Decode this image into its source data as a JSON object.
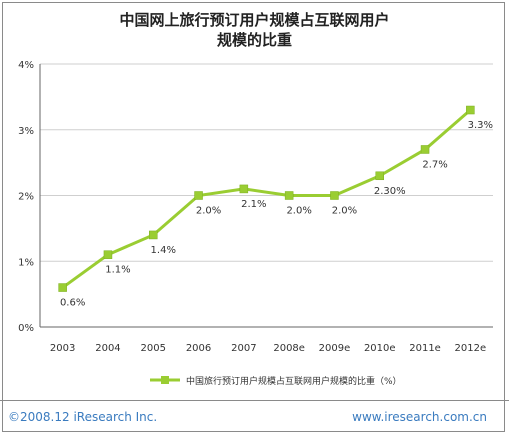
{
  "chart_data": {
    "type": "line",
    "title_line1": "中国网上旅行预订用户规模占互联网用户",
    "title_line2": "规模的比重",
    "categories": [
      "2003",
      "2004",
      "2005",
      "2006",
      "2007",
      "2008e",
      "2009e",
      "2010e",
      "2011e",
      "2012e"
    ],
    "series": [
      {
        "name": "中国旅行预订用户规模占互联网用户规模的比重（%）",
        "values": [
          0.6,
          1.1,
          1.4,
          2.0,
          2.1,
          2.0,
          2.0,
          2.3,
          2.7,
          3.3
        ],
        "labels": [
          "0.6%",
          "1.1%",
          "1.4%",
          "2.0%",
          "2.1%",
          "2.0%",
          "2.0%",
          "2.30%",
          "2.7%",
          "3.3%"
        ]
      }
    ],
    "yticks": [
      "0%",
      "1%",
      "2%",
      "3%",
      "4%"
    ],
    "ylim": [
      0,
      4
    ],
    "grid": true,
    "legend_position": "bottom",
    "line_color": "#9acd32"
  },
  "footer": {
    "copyright": "©2008.12 iResearch Inc.",
    "website": "www.iresearch.com.cn"
  }
}
